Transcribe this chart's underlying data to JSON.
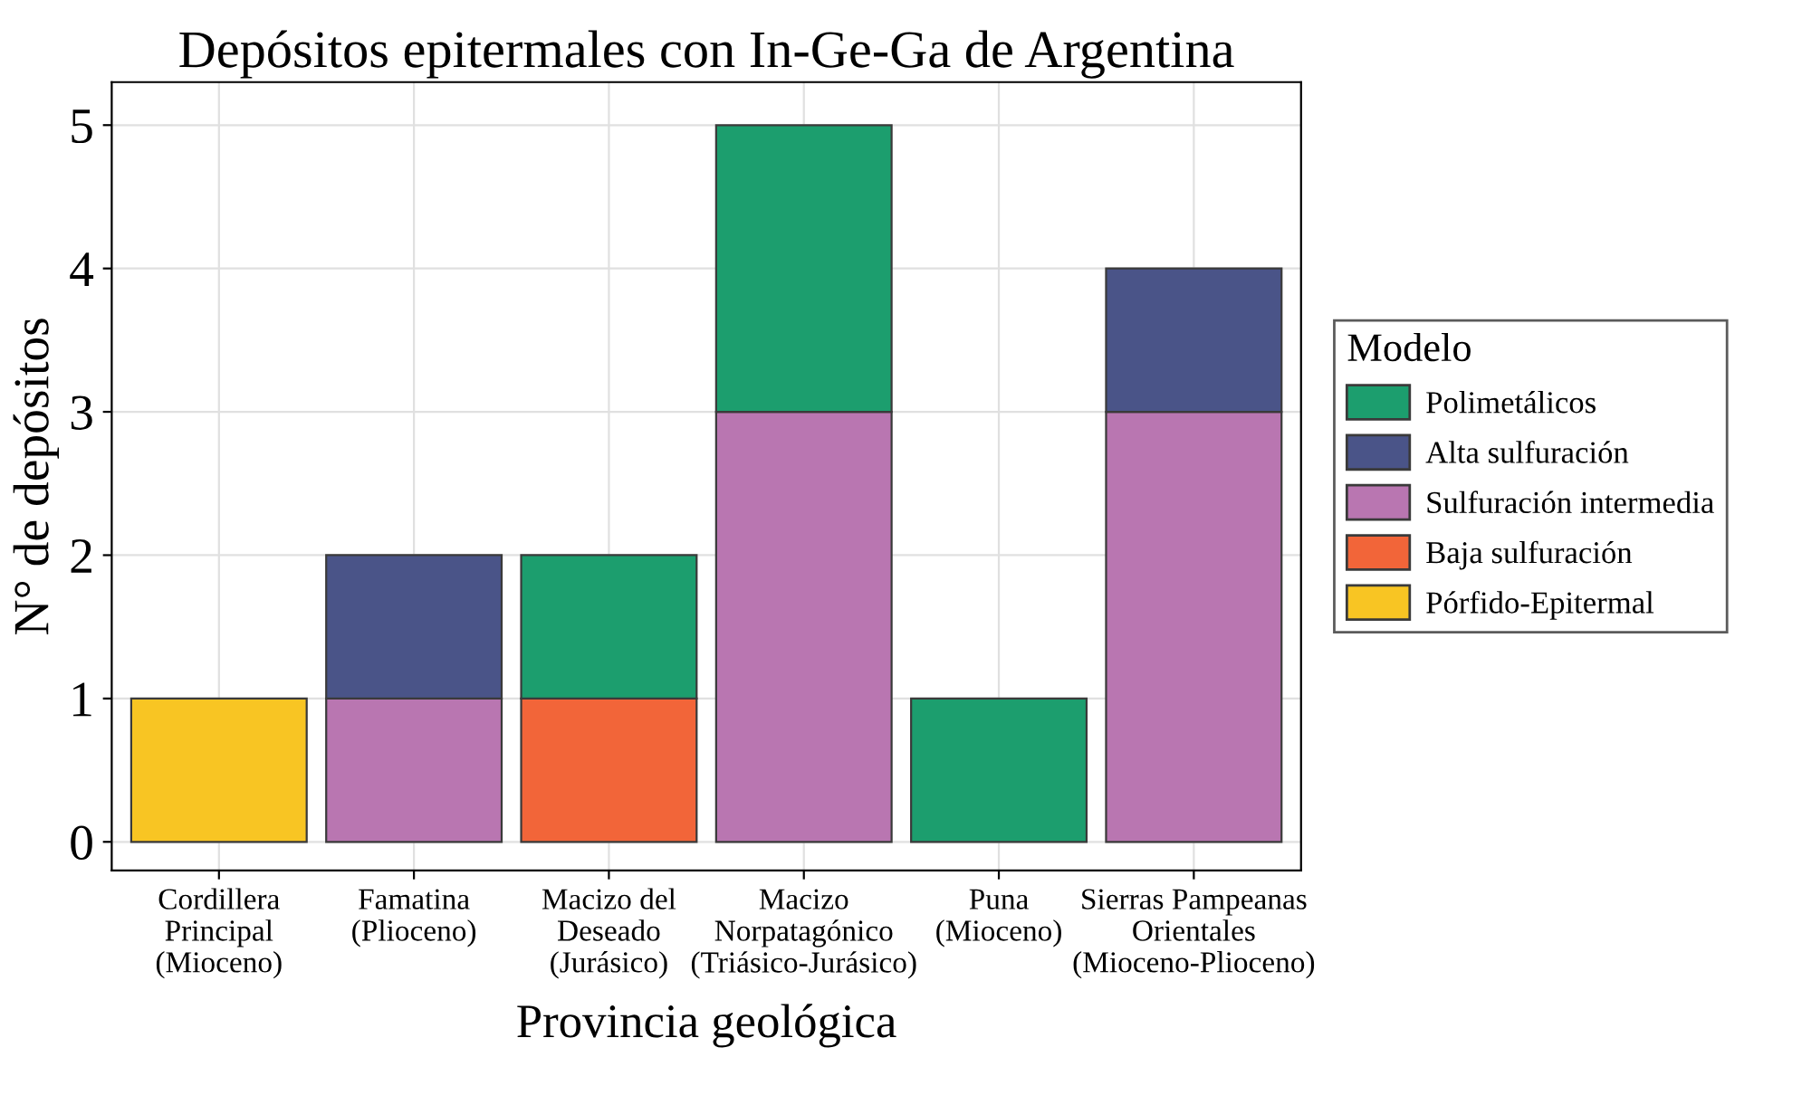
{
  "chart_data": {
    "type": "bar",
    "stacked": true,
    "title": "Depósitos epitermales con In-Ge-Ga de Argentina",
    "xlabel": "Provincia geológica",
    "ylabel": "N° de depósitos",
    "legend_title": "Modelo",
    "legend": "right",
    "grid": true,
    "categories": [
      "Cordillera\nPrincipal\n(Mioceno)",
      "Famatina\n(Plioceno)",
      "Macizo del\nDeseado\n(Jurásico)",
      "Macizo\nNorpatagónico\n(Triásico-Jurásico)",
      "Puna\n(Mioceno)",
      "Sierras Pampeanas\nOrientales\n(Mioceno-Plioceno)"
    ],
    "ylim": [
      -0.2,
      5.3
    ],
    "yticks": [
      0,
      1,
      2,
      3,
      4,
      5
    ],
    "series": [
      {
        "name": "Pórfido-Epitermal",
        "color": "#f8c523",
        "values": [
          1,
          null,
          null,
          null,
          null,
          null
        ]
      },
      {
        "name": "Baja sulfuración",
        "color": "#f26539",
        "values": [
          null,
          null,
          1,
          null,
          null,
          null
        ]
      },
      {
        "name": "Sulfuración intermedia",
        "color": "#b976b1",
        "values": [
          null,
          1,
          null,
          3,
          null,
          3
        ]
      },
      {
        "name": "Alta sulfuración",
        "color": "#4a5488",
        "values": [
          null,
          1,
          null,
          null,
          null,
          1
        ]
      },
      {
        "name": "Polimetálicos",
        "color": "#1c9e6e",
        "values": [
          null,
          null,
          1,
          2,
          1,
          null
        ]
      }
    ]
  }
}
